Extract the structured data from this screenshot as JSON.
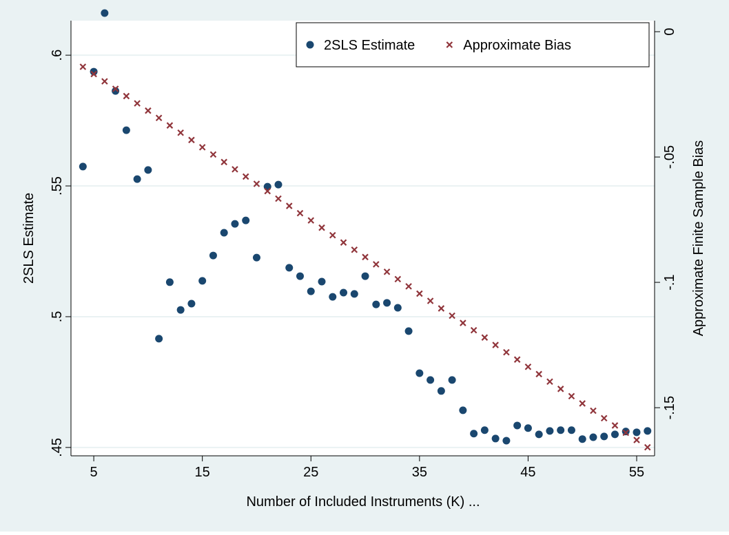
{
  "chart_data": {
    "type": "scatter",
    "x_label": "Number of Included Instruments (K) ...",
    "y_label": "2SLS Estimate",
    "y2_label": "Approximate Finite Sample Bias",
    "x": [
      4,
      5,
      6,
      7,
      8,
      9,
      10,
      11,
      12,
      13,
      14,
      15,
      16,
      17,
      18,
      19,
      20,
      21,
      22,
      23,
      24,
      25,
      26,
      27,
      28,
      29,
      30,
      31,
      32,
      33,
      34,
      35,
      36,
      37,
      38,
      39,
      40,
      41,
      42,
      43,
      44,
      45,
      46,
      47,
      48,
      49,
      50,
      51,
      52,
      53,
      54,
      55,
      56
    ],
    "series": [
      {
        "name": "2SLS Estimate",
        "color": "#1a476f",
        "marker": "circle",
        "values": [
          0.5574,
          0.5937,
          0.6161,
          0.5863,
          0.5713,
          0.5526,
          0.5561,
          0.4916,
          0.5132,
          0.5026,
          0.505,
          0.5137,
          0.5234,
          0.5321,
          0.5355,
          0.5368,
          0.5226,
          0.5497,
          0.5505,
          0.5187,
          0.5155,
          0.5097,
          0.5134,
          0.5076,
          0.5092,
          0.5087,
          0.5155,
          0.5047,
          0.5053,
          0.5034,
          0.4945,
          0.4784,
          0.4758,
          0.4716,
          0.4758,
          0.4642,
          0.4553,
          0.4566,
          0.4534,
          0.4526,
          0.4584,
          0.4574,
          0.455,
          0.4563,
          0.4566,
          0.4566,
          0.4532,
          0.4539,
          0.4542,
          0.455,
          0.4561,
          0.4558,
          0.4563
        ]
      },
      {
        "name": "Approximate Bias",
        "color": "#90353b",
        "marker": "x",
        "axis": "y2",
        "values": [
          -0.014,
          -0.0169,
          -0.0198,
          -0.0228,
          -0.0257,
          -0.0286,
          -0.0315,
          -0.0344,
          -0.0374,
          -0.0403,
          -0.0432,
          -0.0461,
          -0.049,
          -0.052,
          -0.0549,
          -0.0578,
          -0.0607,
          -0.0636,
          -0.0666,
          -0.0695,
          -0.0724,
          -0.0753,
          -0.0782,
          -0.0812,
          -0.0841,
          -0.087,
          -0.0899,
          -0.0928,
          -0.0958,
          -0.0987,
          -0.1016,
          -0.1045,
          -0.1074,
          -0.1104,
          -0.1133,
          -0.1162,
          -0.1191,
          -0.122,
          -0.125,
          -0.1279,
          -0.1308,
          -0.1337,
          -0.1366,
          -0.1396,
          -0.1425,
          -0.1454,
          -0.1483,
          -0.1512,
          -0.1542,
          -0.1571,
          -0.16,
          -0.1629,
          -0.1658
        ]
      }
    ],
    "xlim": [
      2.9,
      56.65
    ],
    "xticks": [
      5,
      15,
      25,
      35,
      45,
      55
    ],
    "ylim": [
      0.4468,
      0.6132
    ],
    "yticks": [
      {
        "value": 0.45,
        "label": ".45"
      },
      {
        "value": 0.5,
        "label": ".5"
      },
      {
        "value": 0.55,
        "label": ".55"
      },
      {
        "value": 0.6,
        "label": ".6"
      }
    ],
    "y2lim": [
      -0.1692,
      0.0044
    ],
    "y2ticks": [
      {
        "value": -0.15,
        "label": "-.15"
      },
      {
        "value": -0.1,
        "label": "-.1"
      },
      {
        "value": -0.05,
        "label": "-.05"
      },
      0
    ],
    "grid": true,
    "legend": "top-right"
  }
}
